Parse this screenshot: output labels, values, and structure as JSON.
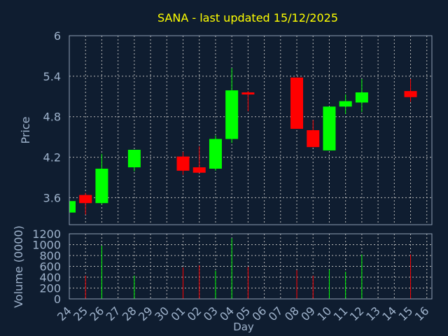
{
  "chart_data": {
    "type": "candlestick",
    "title": "SANA - last updated 15/12/2025",
    "xlabel": "Day",
    "price_panel": {
      "ylabel": "Price",
      "ylim": [
        3.2,
        6.0
      ],
      "yticks": [
        "3.6",
        "4.2",
        "4.8",
        "5.4",
        "6"
      ]
    },
    "volume_panel": {
      "ylabel": "Volume (0000)",
      "ylim": [
        0,
        1200
      ],
      "yticks": [
        "0",
        "200",
        "400",
        "600",
        "800",
        "1000",
        "1200"
      ]
    },
    "x_ticks": [
      "24",
      "25",
      "26",
      "27",
      "28",
      "29",
      "30",
      "01",
      "02",
      "03",
      "04",
      "05",
      "06",
      "07",
      "08",
      "09",
      "10",
      "11",
      "12",
      "13",
      "14",
      "15",
      "16"
    ],
    "candles": [
      {
        "day": "24",
        "open": 3.38,
        "close": 3.55,
        "high": 3.55,
        "low": 3.38
      },
      {
        "day": "25",
        "open": 3.64,
        "close": 3.52,
        "high": 3.67,
        "low": 3.35
      },
      {
        "day": "26",
        "open": 3.52,
        "close": 4.03,
        "high": 4.25,
        "low": 3.5
      },
      {
        "day": "28",
        "open": 4.05,
        "close": 4.31,
        "high": 4.31,
        "low": 3.99
      },
      {
        "day": "01",
        "open": 4.21,
        "close": 4.0,
        "high": 4.28,
        "low": 3.94
      },
      {
        "day": "02",
        "open": 4.05,
        "close": 3.97,
        "high": 4.36,
        "low": 3.97
      },
      {
        "day": "03",
        "open": 4.03,
        "close": 4.47,
        "high": 4.52,
        "low": 4.0
      },
      {
        "day": "04",
        "open": 4.47,
        "close": 5.19,
        "high": 5.52,
        "low": 4.41
      },
      {
        "day": "05",
        "open": 5.16,
        "close": 5.13,
        "high": 5.18,
        "low": 4.88
      },
      {
        "day": "08",
        "open": 5.38,
        "close": 4.62,
        "high": 5.38,
        "low": 4.62
      },
      {
        "day": "09",
        "open": 4.6,
        "close": 4.35,
        "high": 4.75,
        "low": 4.35
      },
      {
        "day": "10",
        "open": 4.3,
        "close": 4.95,
        "high": 4.95,
        "low": 4.3
      },
      {
        "day": "11",
        "open": 4.95,
        "close": 5.03,
        "high": 5.13,
        "low": 4.84
      },
      {
        "day": "12",
        "open": 5.01,
        "close": 5.16,
        "high": 5.36,
        "low": 4.87
      },
      {
        "day": "15",
        "open": 5.18,
        "close": 5.09,
        "high": 5.36,
        "low": 5.02
      }
    ],
    "volume": [
      {
        "day": "25",
        "value": 430,
        "dir": "down"
      },
      {
        "day": "26",
        "value": 980,
        "dir": "up"
      },
      {
        "day": "28",
        "value": 430,
        "dir": "up"
      },
      {
        "day": "01",
        "value": 580,
        "dir": "down"
      },
      {
        "day": "02",
        "value": 620,
        "dir": "down"
      },
      {
        "day": "03",
        "value": 520,
        "dir": "up"
      },
      {
        "day": "04",
        "value": 1120,
        "dir": "up"
      },
      {
        "day": "05",
        "value": 590,
        "dir": "down"
      },
      {
        "day": "08",
        "value": 530,
        "dir": "down"
      },
      {
        "day": "09",
        "value": 430,
        "dir": "down"
      },
      {
        "day": "10",
        "value": 540,
        "dir": "up"
      },
      {
        "day": "11",
        "value": 500,
        "dir": "up"
      },
      {
        "day": "12",
        "value": 820,
        "dir": "up"
      },
      {
        "day": "15",
        "value": 820,
        "dir": "down"
      }
    ],
    "colors": {
      "background": "#0f1d30",
      "up": "#00ff00",
      "down": "#ff0000",
      "title": "#ffff00",
      "axis_text": "#9fb3cc",
      "grid": "#b8b8b8",
      "frame": "#8fa0b5"
    }
  }
}
